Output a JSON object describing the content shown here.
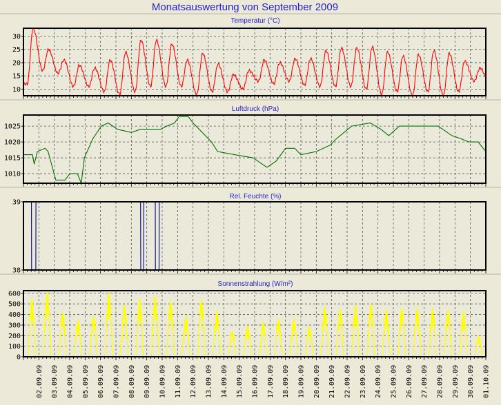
{
  "title": "Monatsauswertung von September 2009",
  "colors": {
    "temperature": "#ff0000",
    "pressure": "#007000",
    "humidity": "#000090",
    "solar": "#ffff00",
    "title": "#2323c8"
  },
  "x_axis": {
    "labels": [
      "02.09.09",
      "03.09.09",
      "04.09.09",
      "05.09.09",
      "06.09.09",
      "07.09.09",
      "08.09.09",
      "09.09.09",
      "10.09.09",
      "11.09.09",
      "12.09.09",
      "13.09.09",
      "14.09.09",
      "15.09.09",
      "16.09.09",
      "17.09.09",
      "18.09.09",
      "19.09.09",
      "20.09.09",
      "21.09.09",
      "22.09.09",
      "23.09.09",
      "24.09.09",
      "25.09.09",
      "26.09.09",
      "27.09.09",
      "28.09.09",
      "29.09.09",
      "30.09.09",
      "01.10.09"
    ],
    "range_days": [
      0,
      30
    ]
  },
  "chart_data": [
    {
      "type": "line",
      "title": "Temperatur (°C)",
      "ylim": [
        7.5,
        33
      ],
      "yticks": [
        "10",
        "15",
        "20",
        "25",
        "30"
      ],
      "ytick_values": [
        10,
        15,
        20,
        25,
        30
      ],
      "grid": true,
      "daily_min": [
        12,
        17,
        16,
        11,
        11,
        9,
        8,
        9,
        11,
        11,
        11,
        8,
        9,
        9,
        10,
        13,
        12,
        13,
        11.5,
        11,
        11,
        11,
        10,
        8,
        9,
        7.5,
        9,
        7.5,
        9,
        13
      ],
      "daily_max": [
        33,
        25,
        21,
        19,
        18,
        21,
        24,
        28.5,
        28.5,
        27,
        21,
        23.5,
        19.5,
        15.5,
        17,
        21,
        20,
        21.5,
        21.5,
        24.5,
        25.5,
        25.5,
        26,
        24,
        22.5,
        23,
        24.5,
        23.5,
        20.5,
        18
      ],
      "end_value": 12
    },
    {
      "type": "line",
      "title": "Luftdruck (hPa)",
      "ylim": [
        1007,
        1028.5
      ],
      "yticks": [
        "1010",
        "1015",
        "1020",
        "1025"
      ],
      "ytick_values": [
        1010,
        1015,
        1020,
        1025
      ],
      "grid": true,
      "points": [
        [
          0,
          1016
        ],
        [
          0.58,
          1016
        ],
        [
          0.7,
          1013
        ],
        [
          0.9,
          1017
        ],
        [
          1.4,
          1018
        ],
        [
          1.6,
          1017
        ],
        [
          2.1,
          1008
        ],
        [
          2.7,
          1008
        ],
        [
          3.0,
          1010
        ],
        [
          3.5,
          1010
        ],
        [
          3.75,
          1007
        ],
        [
          3.95,
          1015
        ],
        [
          4.5,
          1021
        ],
        [
          5.05,
          1025
        ],
        [
          5.5,
          1026
        ],
        [
          6.1,
          1024
        ],
        [
          7.0,
          1023
        ],
        [
          7.6,
          1024
        ],
        [
          8.9,
          1024
        ],
        [
          9.3,
          1025
        ],
        [
          9.8,
          1026
        ],
        [
          10.1,
          1028
        ],
        [
          10.7,
          1028
        ],
        [
          11.0,
          1026
        ],
        [
          11.8,
          1022
        ],
        [
          12.2,
          1020
        ],
        [
          12.6,
          1017
        ],
        [
          13.7,
          1016
        ],
        [
          14.9,
          1015
        ],
        [
          15.5,
          1013
        ],
        [
          15.8,
          1012
        ],
        [
          16.4,
          1014
        ],
        [
          17.0,
          1018
        ],
        [
          17.6,
          1018
        ],
        [
          18.0,
          1016
        ],
        [
          19.0,
          1017
        ],
        [
          19.9,
          1019
        ],
        [
          20.3,
          1021
        ],
        [
          20.8,
          1023
        ],
        [
          21.3,
          1025
        ],
        [
          22.5,
          1026
        ],
        [
          23.2,
          1024
        ],
        [
          23.7,
          1022
        ],
        [
          24.4,
          1025
        ],
        [
          26.9,
          1025
        ],
        [
          27.8,
          1022
        ],
        [
          28.4,
          1021
        ],
        [
          28.9,
          1020
        ],
        [
          29.5,
          1020
        ],
        [
          30,
          1017
        ]
      ]
    },
    {
      "type": "line",
      "title": "Rel. Feuchte (%)",
      "ylim": [
        38,
        39
      ],
      "yticks": [
        "38",
        "39"
      ],
      "ytick_values": [
        38,
        39
      ],
      "grid": true,
      "points": [
        [
          0,
          38
        ],
        [
          0.01,
          39
        ],
        [
          0.52,
          39
        ],
        [
          0.53,
          38
        ],
        [
          0.8,
          38
        ],
        [
          0.81,
          39
        ],
        [
          7.6,
          39
        ],
        [
          7.61,
          38
        ],
        [
          7.8,
          38
        ],
        [
          7.81,
          39
        ],
        [
          8.55,
          39
        ],
        [
          8.56,
          38
        ],
        [
          8.8,
          38
        ],
        [
          8.81,
          39
        ],
        [
          30,
          39
        ]
      ]
    },
    {
      "type": "area",
      "title": "Sonnenstrahlung (W/m²)",
      "ylim": [
        0,
        625
      ],
      "yticks": [
        "0",
        "100",
        "200",
        "300",
        "400",
        "500",
        "600"
      ],
      "ytick_values": [
        0,
        100,
        200,
        300,
        400,
        500,
        600
      ],
      "grid": true,
      "daily_peak": [
        560,
        650,
        440,
        360,
        400,
        630,
        510,
        560,
        600,
        545,
        400,
        560,
        450,
        250,
        300,
        340,
        370,
        370,
        290,
        490,
        460,
        500,
        510,
        460,
        480,
        480,
        470,
        460,
        440,
        200
      ]
    }
  ]
}
